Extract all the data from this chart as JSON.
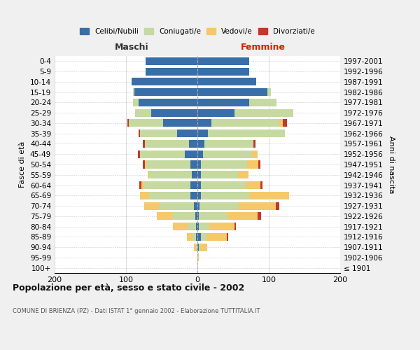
{
  "age_groups": [
    "100+",
    "95-99",
    "90-94",
    "85-89",
    "80-84",
    "75-79",
    "70-74",
    "65-69",
    "60-64",
    "55-59",
    "50-54",
    "45-49",
    "40-44",
    "35-39",
    "30-34",
    "25-29",
    "20-24",
    "15-19",
    "10-14",
    "5-9",
    "0-4"
  ],
  "birth_years": [
    "≤ 1901",
    "1902-1906",
    "1907-1911",
    "1912-1916",
    "1917-1921",
    "1922-1926",
    "1927-1931",
    "1932-1936",
    "1937-1941",
    "1942-1946",
    "1947-1951",
    "1952-1956",
    "1957-1961",
    "1962-1966",
    "1967-1971",
    "1972-1976",
    "1977-1981",
    "1982-1986",
    "1987-1991",
    "1992-1996",
    "1997-2001"
  ],
  "maschi": {
    "celibi": [
      0,
      0,
      0,
      2,
      2,
      3,
      5,
      10,
      10,
      8,
      10,
      18,
      12,
      28,
      48,
      65,
      82,
      88,
      92,
      73,
      73
    ],
    "coniugati": [
      0,
      0,
      2,
      5,
      12,
      32,
      48,
      58,
      65,
      60,
      62,
      62,
      62,
      52,
      48,
      22,
      8,
      2,
      0,
      0,
      0
    ],
    "vedovi": [
      0,
      0,
      3,
      8,
      20,
      22,
      22,
      12,
      3,
      2,
      2,
      0,
      0,
      0,
      0,
      0,
      0,
      0,
      0,
      0,
      0
    ],
    "divorziati": [
      0,
      0,
      0,
      0,
      0,
      0,
      0,
      0,
      3,
      0,
      2,
      3,
      2,
      2,
      2,
      0,
      0,
      0,
      0,
      0,
      0
    ]
  },
  "femmine": {
    "nubili": [
      0,
      0,
      2,
      5,
      2,
      2,
      3,
      5,
      5,
      5,
      5,
      8,
      10,
      15,
      20,
      52,
      73,
      98,
      82,
      73,
      73
    ],
    "coniugate": [
      0,
      0,
      2,
      8,
      15,
      40,
      55,
      68,
      63,
      52,
      65,
      68,
      68,
      108,
      95,
      82,
      38,
      5,
      0,
      0,
      0
    ],
    "vedove": [
      0,
      2,
      10,
      28,
      35,
      42,
      52,
      55,
      20,
      15,
      15,
      8,
      0,
      0,
      5,
      0,
      0,
      0,
      0,
      0,
      0
    ],
    "divorziate": [
      0,
      0,
      0,
      2,
      2,
      5,
      5,
      0,
      3,
      0,
      3,
      0,
      3,
      0,
      5,
      0,
      0,
      0,
      0,
      0,
      0
    ]
  },
  "colors": {
    "celibi": "#3a6ea8",
    "coniugati": "#c5d9a0",
    "vedovi": "#f5c869",
    "divorziati": "#c0392b"
  },
  "xlim": [
    -200,
    200
  ],
  "xticks": [
    -200,
    -100,
    0,
    100,
    200
  ],
  "xticklabels": [
    "200",
    "100",
    "0",
    "100",
    "200"
  ],
  "title": "Popolazione per età, sesso e stato civile - 2002",
  "subtitle": "COMUNE DI BRIENZA (PZ) - Dati ISTAT 1° gennaio 2002 - Elaborazione TUTTITALIA.IT",
  "ylabel_left": "Fasce di età",
  "ylabel_right": "Anni di nascita",
  "label_maschi": "Maschi",
  "label_femmine": "Femmine",
  "legend_labels": [
    "Celibi/Nubili",
    "Coniugati/e",
    "Vedovi/e",
    "Divorziati/e"
  ],
  "bg_color": "#f0f0f0",
  "plot_bg_color": "#ffffff"
}
